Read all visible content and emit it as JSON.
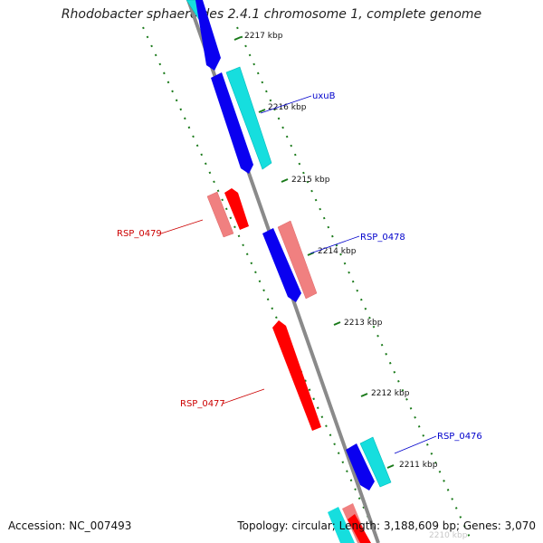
{
  "title": "Rhodobacter sphaeroides 2.4.1 chromosome 1, complete genome",
  "footer": {
    "accession": "Accession: NC_007493",
    "summary": "Topology: circular; Length: 3,188,609 bp; Genes: 3,070"
  },
  "ticks": [
    "2217 kbp",
    "2216 kbp",
    "2215 kbp",
    "2214 kbp",
    "2213 kbp",
    "2212 kbp",
    "2211 kbp",
    "2210 kbp"
  ],
  "gene_labels": {
    "uxuB": "uxuB",
    "rsp0479": "RSP_0479",
    "rsp0478": "RSP_0478",
    "rsp0477": "RSP_0477",
    "rsp0476": "RSP_0476"
  },
  "colors": {
    "backbone": "#8a8a8a",
    "dots": "#1a7a1a",
    "blue": "#0a00f0",
    "cyan": "#16dede",
    "red": "#ff0000",
    "pink": "#f08080",
    "label_red": "#cc0000",
    "label_blue": "#0000cc"
  }
}
